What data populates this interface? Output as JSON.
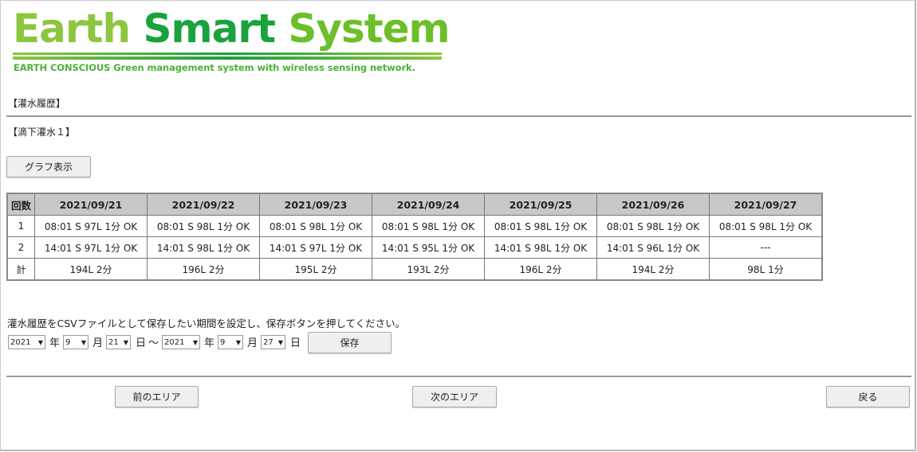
{
  "logo": {
    "word1": "Earth",
    "word2": "Smart",
    "word3": "System",
    "tagline": "EARTH CONSCIOUS Green management system with wireless sensing network."
  },
  "section_title": "【灌水履歴】",
  "area_title": "【滴下灌水１】",
  "graph_button": "グラフ表示",
  "table": {
    "header_count": "回数",
    "dates": [
      "2021/09/21",
      "2021/09/22",
      "2021/09/23",
      "2021/09/24",
      "2021/09/25",
      "2021/09/26",
      "2021/09/27"
    ],
    "rows": [
      {
        "label": "1",
        "cells": [
          "08:01 S 97L 1分 OK",
          "08:01 S 98L 1分 OK",
          "08:01 S 98L 1分 OK",
          "08:01 S 98L 1分 OK",
          "08:01 S 98L 1分 OK",
          "08:01 S 98L 1分 OK",
          "08:01 S 98L 1分 OK"
        ]
      },
      {
        "label": "2",
        "cells": [
          "14:01 S 97L 1分 OK",
          "14:01 S 98L 1分 OK",
          "14:01 S 97L 1分 OK",
          "14:01 S 95L 1分 OK",
          "14:01 S 98L 1分 OK",
          "14:01 S 96L 1分 OK",
          "---"
        ]
      },
      {
        "label": "計",
        "cells": [
          "194L 2分",
          "196L 2分",
          "195L 2分",
          "193L 2分",
          "196L 2分",
          "194L 2分",
          "98L 1分"
        ]
      }
    ]
  },
  "csv": {
    "instruction": "灌水履歴をCSVファイルとして保存したい期間を設定し、保存ボタンを押してください。",
    "from": {
      "year": "2021",
      "month": "9",
      "day": "21"
    },
    "to": {
      "year": "2021",
      "month": "9",
      "day": "27"
    },
    "year_unit": "年",
    "month_unit": "月",
    "day_unit": "日",
    "range_sep": "～",
    "save_button": "保存"
  },
  "nav": {
    "prev": "前のエリア",
    "next": "次のエリア",
    "back": "戻る"
  },
  "colors": {
    "logo_light": "#8cc63f",
    "logo_dark": "#1aa23c",
    "header_bg": "#c8c8c8"
  }
}
